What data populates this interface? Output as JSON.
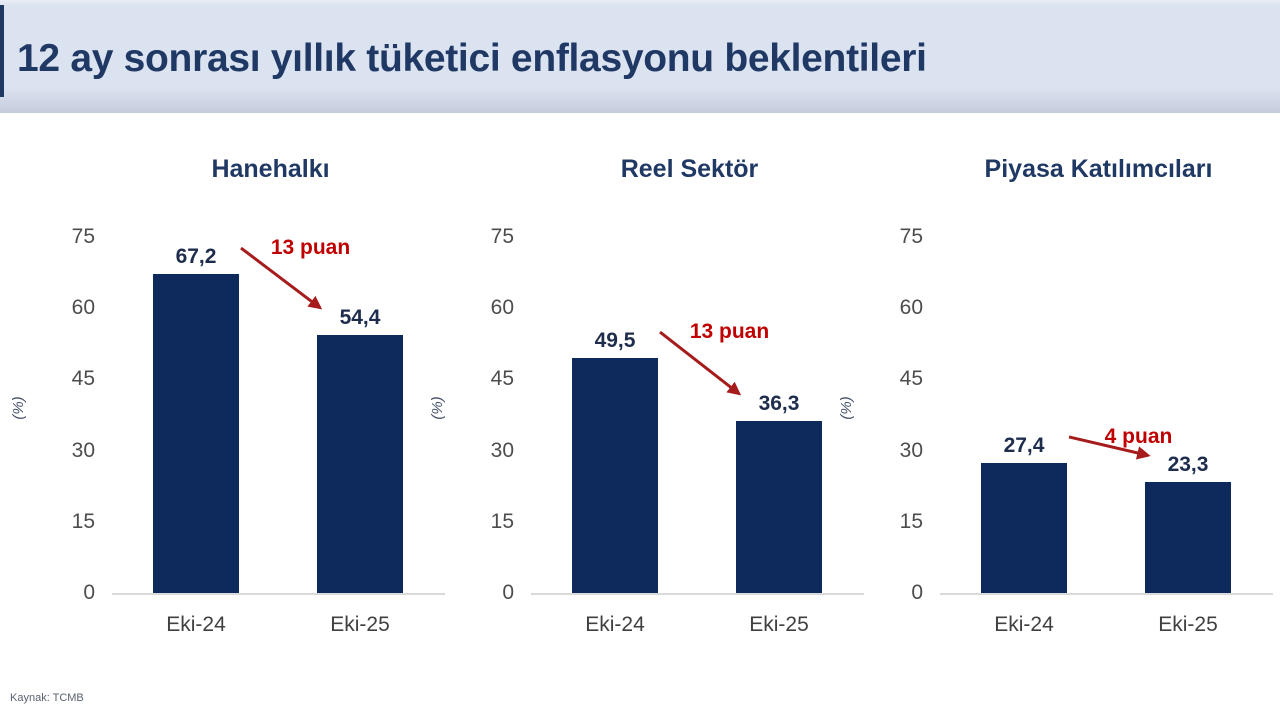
{
  "header": {
    "title": "12 ay sonrası yıllık tüketici enflasyonu beklentileri"
  },
  "source": "Kaynak: TCMB",
  "colors": {
    "header_bg": "#dbe3f1",
    "title_text": "#1f3864",
    "bar_fill": "#0e2a5c",
    "annotation_red": "#c00000",
    "arrow_red": "#a61c1c",
    "axis_line": "#d9d9d9",
    "tick_text": "#4d4d4d",
    "value_text": "#1f2d4d"
  },
  "chart_data": [
    {
      "type": "bar",
      "title": "Hanehalkı",
      "categories": [
        "Eki-24",
        "Eki-25"
      ],
      "values": [
        67.2,
        54.4
      ],
      "value_labels": [
        "67,2",
        "54,4"
      ],
      "annotation": "13 puan",
      "ylabel": "(%)",
      "yticks": [
        "75",
        "60",
        "45",
        "30",
        "15",
        "0"
      ],
      "ylim": [
        0,
        75
      ],
      "grid": false,
      "legend": "none"
    },
    {
      "type": "bar",
      "title": "Reel Sektör",
      "categories": [
        "Eki-24",
        "Eki-25"
      ],
      "values": [
        49.5,
        36.3
      ],
      "value_labels": [
        "49,5",
        "36,3"
      ],
      "annotation": "13 puan",
      "ylabel": "(%)",
      "yticks": [
        "75",
        "60",
        "45",
        "30",
        "15",
        "0"
      ],
      "ylim": [
        0,
        75
      ],
      "grid": false,
      "legend": "none"
    },
    {
      "type": "bar",
      "title": "Piyasa Katılımcıları",
      "categories": [
        "Eki-24",
        "Eki-25"
      ],
      "values": [
        27.4,
        23.3
      ],
      "value_labels": [
        "27,4",
        "23,3"
      ],
      "annotation": "4 puan",
      "ylabel": "(%)",
      "yticks": [
        "75",
        "60",
        "45",
        "30",
        "15",
        "0"
      ],
      "ylim": [
        0,
        75
      ],
      "grid": false,
      "legend": "none"
    }
  ]
}
